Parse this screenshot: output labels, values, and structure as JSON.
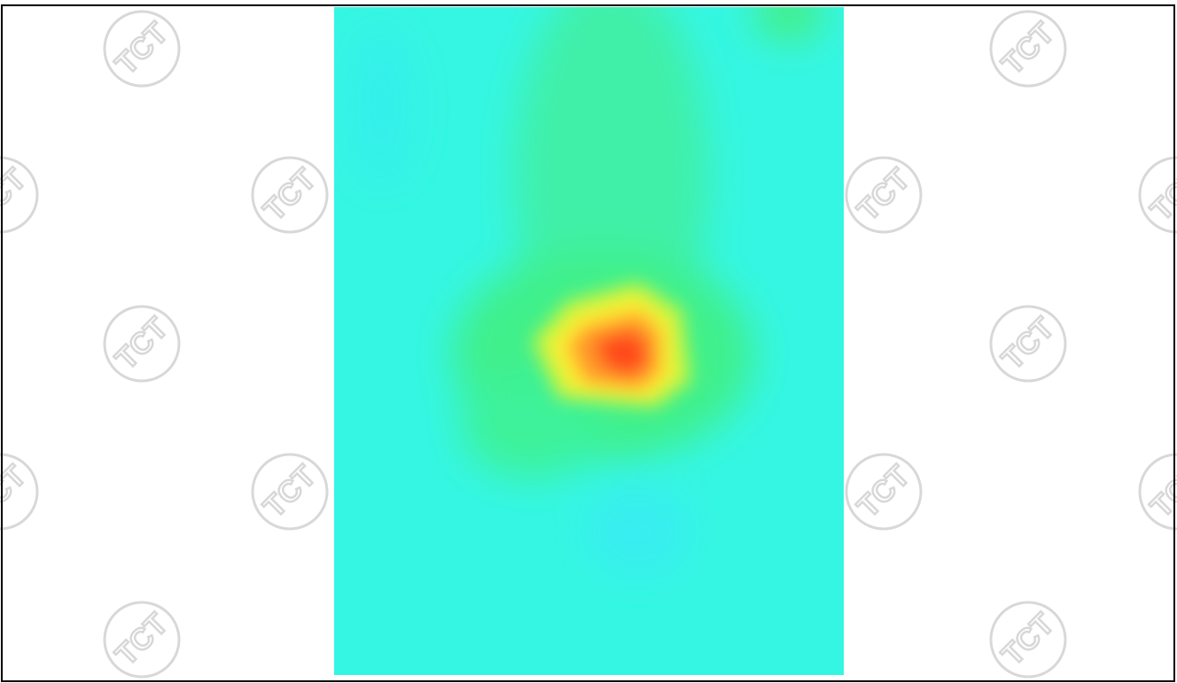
{
  "watermark": {
    "text": "TCT"
  }
}
